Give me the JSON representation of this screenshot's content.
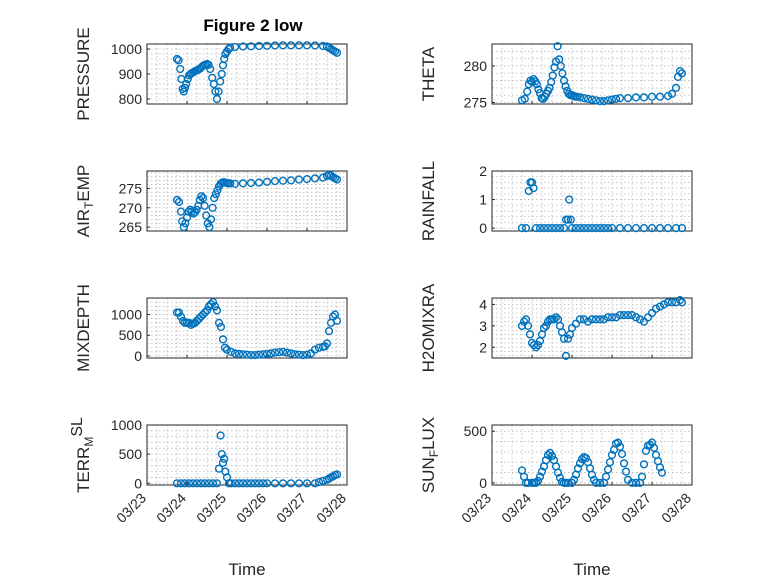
{
  "figure": {
    "title": "Figure 2 low",
    "marker_color": "#0072BD",
    "x_ticks": [
      "03/23",
      "03/24",
      "03/25",
      "03/26",
      "03/27",
      "03/28"
    ],
    "x_label": "Time"
  },
  "chart_data": [
    {
      "type": "scatter",
      "ylabel": "PRESSURE",
      "ylim": [
        780,
        1020
      ],
      "yticks": [
        800,
        900,
        1000
      ],
      "grid": true,
      "x": [
        23.75,
        23.79,
        23.83,
        23.86,
        23.89,
        23.92,
        23.95,
        23.98,
        24.02,
        24.05,
        24.09,
        24.13,
        24.17,
        24.21,
        24.25,
        24.29,
        24.33,
        24.38,
        24.42,
        24.46,
        24.5,
        24.54,
        24.58,
        24.63,
        24.67,
        24.71,
        24.75,
        24.79,
        24.83,
        24.87,
        24.9,
        24.93,
        24.96,
        25.0,
        25.04,
        25.08,
        25.2,
        25.4,
        25.6,
        25.8,
        26.0,
        26.2,
        26.4,
        26.6,
        26.8,
        27.0,
        27.2,
        27.4,
        27.5,
        27.55,
        27.6,
        27.65,
        27.7,
        27.75
      ],
      "y": [
        960,
        955,
        920,
        880,
        840,
        830,
        845,
        860,
        880,
        895,
        900,
        905,
        908,
        912,
        915,
        918,
        922,
        930,
        935,
        937,
        940,
        937,
        920,
        885,
        860,
        830,
        800,
        830,
        870,
        900,
        935,
        960,
        980,
        990,
        1000,
        1005,
        1008,
        1010,
        1011,
        1012,
        1013,
        1014,
        1015,
        1015,
        1015,
        1015,
        1014,
        1012,
        1010,
        1005,
        1000,
        995,
        990,
        985
      ]
    },
    {
      "type": "scatter",
      "ylabel": "THETA",
      "ylim": [
        274.8,
        283.0
      ],
      "yticks": [
        275,
        280
      ],
      "grid": true,
      "x": [
        23.75,
        23.82,
        23.88,
        23.92,
        23.96,
        24.0,
        24.04,
        24.08,
        24.12,
        24.16,
        24.2,
        24.24,
        24.28,
        24.32,
        24.36,
        24.4,
        24.44,
        24.48,
        24.52,
        24.56,
        24.6,
        24.64,
        24.68,
        24.72,
        24.76,
        24.8,
        24.84,
        24.88,
        24.92,
        24.96,
        25.0,
        25.04,
        25.08,
        25.12,
        25.2,
        25.3,
        25.4,
        25.5,
        25.6,
        25.7,
        25.8,
        25.9,
        26.0,
        26.1,
        26.2,
        26.4,
        26.6,
        26.8,
        27.0,
        27.2,
        27.4,
        27.5,
        27.6,
        27.65,
        27.7,
        27.75
      ],
      "y": [
        275.3,
        275.5,
        276.5,
        277.5,
        278.0,
        277.8,
        278.2,
        277.9,
        277.5,
        276.8,
        276.3,
        275.6,
        275.5,
        275.8,
        276.2,
        276.6,
        277.0,
        277.8,
        278.7,
        279.8,
        280.6,
        282.7,
        280.9,
        280.0,
        279.0,
        278.0,
        277.2,
        276.6,
        276.2,
        276.0,
        276.0,
        275.9,
        275.8,
        275.8,
        275.7,
        275.6,
        275.5,
        275.4,
        275.3,
        275.2,
        275.2,
        275.3,
        275.4,
        275.5,
        275.6,
        275.6,
        275.7,
        275.7,
        275.8,
        275.8,
        275.9,
        276.2,
        277.0,
        278.5,
        279.3,
        279.0
      ]
    },
    {
      "type": "scatter",
      "ylabel": "AIR_TEMP",
      "ylim": [
        264.0,
        279.5
      ],
      "yticks": [
        265,
        270,
        275
      ],
      "grid": true,
      "x": [
        23.75,
        23.8,
        23.85,
        23.88,
        23.92,
        23.96,
        24.0,
        24.04,
        24.08,
        24.12,
        24.16,
        24.2,
        24.24,
        24.28,
        24.32,
        24.36,
        24.4,
        24.44,
        24.48,
        24.52,
        24.56,
        24.6,
        24.64,
        24.68,
        24.72,
        24.76,
        24.8,
        24.84,
        24.88,
        24.92,
        24.96,
        25.0,
        25.04,
        25.08,
        25.2,
        25.4,
        25.6,
        25.8,
        26.0,
        26.2,
        26.4,
        26.6,
        26.8,
        27.0,
        27.2,
        27.4,
        27.5,
        27.55,
        27.6,
        27.65,
        27.7,
        27.75
      ],
      "y": [
        272.0,
        271.5,
        269.0,
        266.5,
        265.0,
        266.0,
        267.5,
        269.0,
        269.5,
        269.0,
        268.5,
        268.8,
        269.5,
        270.5,
        272.0,
        273.0,
        272.5,
        270.5,
        268.0,
        266.0,
        265.0,
        267.0,
        270.0,
        272.5,
        273.5,
        274.5,
        275.5,
        276.2,
        276.5,
        276.6,
        276.5,
        276.4,
        276.3,
        276.3,
        276.2,
        276.3,
        276.4,
        276.5,
        276.7,
        276.9,
        277.0,
        277.1,
        277.3,
        277.4,
        277.6,
        277.8,
        278.2,
        278.5,
        278.3,
        277.9,
        277.6,
        277.3
      ]
    },
    {
      "type": "scatter",
      "ylabel": "RAINFALL",
      "ylim": [
        -0.1,
        2.0
      ],
      "yticks": [
        0,
        1,
        2
      ],
      "grid": true,
      "x": [
        23.75,
        23.85,
        23.92,
        23.96,
        24.0,
        24.04,
        24.1,
        24.2,
        24.3,
        24.4,
        24.5,
        24.6,
        24.7,
        24.8,
        24.85,
        24.9,
        24.93,
        24.97,
        25.0,
        25.1,
        25.2,
        25.3,
        25.4,
        25.5,
        25.6,
        25.7,
        25.8,
        25.9,
        26.0,
        26.2,
        26.4,
        26.6,
        26.8,
        27.0,
        27.2,
        27.4,
        27.6,
        27.75
      ],
      "y": [
        0,
        0,
        1.3,
        1.6,
        1.6,
        1.4,
        0,
        0,
        0,
        0,
        0,
        0,
        0,
        0,
        0.3,
        0.3,
        1.0,
        0.3,
        0,
        0,
        0,
        0,
        0,
        0,
        0,
        0,
        0,
        0,
        0,
        0,
        0,
        0,
        0,
        0,
        0,
        0,
        0,
        0
      ]
    },
    {
      "type": "scatter",
      "ylabel": "MIXDEPTH",
      "ylim": [
        -50,
        1400
      ],
      "yticks": [
        0,
        500,
        1000
      ],
      "grid": true,
      "x": [
        23.75,
        23.8,
        23.85,
        23.9,
        23.95,
        24.0,
        24.05,
        24.1,
        24.15,
        24.2,
        24.25,
        24.3,
        24.35,
        24.4,
        24.45,
        24.5,
        24.55,
        24.6,
        24.65,
        24.7,
        24.75,
        24.8,
        24.85,
        24.9,
        24.95,
        25.0,
        25.1,
        25.2,
        25.3,
        25.4,
        25.5,
        25.6,
        25.7,
        25.8,
        25.9,
        26.0,
        26.1,
        26.2,
        26.3,
        26.4,
        26.5,
        26.6,
        26.7,
        26.8,
        26.9,
        27.0,
        27.1,
        27.2,
        27.3,
        27.4,
        27.45,
        27.5,
        27.55,
        27.6,
        27.65,
        27.7,
        27.75
      ],
      "y": [
        1050,
        1050,
        950,
        850,
        800,
        800,
        800,
        750,
        780,
        800,
        850,
        900,
        950,
        1000,
        1050,
        1100,
        1200,
        1250,
        1300,
        1200,
        1100,
        800,
        700,
        400,
        200,
        150,
        100,
        60,
        50,
        40,
        30,
        20,
        20,
        30,
        40,
        50,
        60,
        80,
        90,
        100,
        80,
        60,
        40,
        30,
        20,
        30,
        60,
        150,
        200,
        220,
        230,
        300,
        600,
        800,
        950,
        1000,
        850
      ]
    },
    {
      "type": "scatter",
      "ylabel": "H2OMIXRA",
      "ylim": [
        1.5,
        4.3
      ],
      "yticks": [
        2,
        3,
        4
      ],
      "grid": true,
      "x": [
        23.75,
        23.8,
        23.85,
        23.9,
        23.95,
        24.0,
        24.05,
        24.1,
        24.15,
        24.2,
        24.25,
        24.3,
        24.35,
        24.4,
        24.45,
        24.5,
        24.55,
        24.6,
        24.65,
        24.7,
        24.75,
        24.8,
        24.85,
        24.9,
        24.95,
        25.0,
        25.1,
        25.2,
        25.3,
        25.4,
        25.5,
        25.6,
        25.7,
        25.8,
        25.9,
        26.0,
        26.1,
        26.2,
        26.3,
        26.4,
        26.5,
        26.6,
        26.7,
        26.8,
        26.9,
        27.0,
        27.1,
        27.2,
        27.3,
        27.4,
        27.5,
        27.6,
        27.7,
        27.75
      ],
      "y": [
        3.0,
        3.2,
        3.3,
        3.0,
        2.6,
        2.2,
        2.1,
        2.0,
        2.1,
        2.3,
        2.6,
        2.9,
        3.0,
        3.2,
        3.3,
        3.3,
        3.3,
        3.4,
        3.3,
        3.0,
        2.7,
        2.4,
        1.6,
        2.4,
        2.6,
        2.9,
        3.1,
        3.3,
        3.3,
        3.2,
        3.3,
        3.3,
        3.3,
        3.3,
        3.4,
        3.4,
        3.4,
        3.5,
        3.5,
        3.5,
        3.5,
        3.4,
        3.3,
        3.2,
        3.4,
        3.6,
        3.8,
        3.9,
        4.0,
        4.1,
        4.1,
        4.1,
        4.2,
        4.1
      ]
    },
    {
      "type": "scatter",
      "ylabel": "TERR_MSL",
      "ylim": [
        -30,
        1000
      ],
      "yticks": [
        0,
        500,
        1000
      ],
      "grid": true,
      "x": [
        23.75,
        23.85,
        23.95,
        24.05,
        24.15,
        24.25,
        24.35,
        24.45,
        24.55,
        24.65,
        24.75,
        24.8,
        24.84,
        24.87,
        24.9,
        24.93,
        24.96,
        25.0,
        25.05,
        25.1,
        25.2,
        25.3,
        25.4,
        25.5,
        25.6,
        25.7,
        25.8,
        25.9,
        26.0,
        26.2,
        26.4,
        26.6,
        26.8,
        27.0,
        27.2,
        27.3,
        27.4,
        27.5,
        27.55,
        27.6,
        27.65,
        27.7,
        27.75
      ],
      "y": [
        0,
        0,
        0,
        0,
        0,
        0,
        0,
        0,
        0,
        0,
        0,
        250,
        820,
        500,
        350,
        420,
        200,
        100,
        0,
        0,
        0,
        0,
        0,
        0,
        0,
        0,
        0,
        0,
        0,
        0,
        0,
        0,
        0,
        0,
        0,
        20,
        40,
        60,
        80,
        100,
        120,
        140,
        150
      ]
    },
    {
      "type": "scatter",
      "ylabel": "SUN_FLUX",
      "ylim": [
        -20,
        560
      ],
      "yticks": [
        0,
        500
      ],
      "grid": true,
      "x": [
        23.75,
        23.8,
        23.85,
        23.9,
        24.0,
        24.05,
        24.1,
        24.15,
        24.2,
        24.25,
        24.3,
        24.35,
        24.4,
        24.45,
        24.5,
        24.55,
        24.6,
        24.65,
        24.7,
        24.75,
        24.8,
        24.85,
        24.9,
        25.0,
        25.05,
        25.1,
        25.15,
        25.2,
        25.25,
        25.3,
        25.35,
        25.4,
        25.45,
        25.5,
        25.55,
        25.6,
        25.7,
        25.8,
        25.85,
        25.9,
        25.95,
        26.0,
        26.05,
        26.1,
        26.15,
        26.2,
        26.25,
        26.3,
        26.35,
        26.4,
        26.5,
        26.6,
        26.7,
        26.75,
        26.8,
        26.85,
        26.9,
        26.95,
        27.0,
        27.05,
        27.1,
        27.15,
        27.2,
        27.25
      ],
      "y": [
        120,
        60,
        0,
        0,
        0,
        0,
        0,
        20,
        60,
        110,
        160,
        220,
        270,
        290,
        260,
        220,
        160,
        100,
        50,
        10,
        0,
        0,
        0,
        0,
        30,
        80,
        140,
        190,
        230,
        250,
        240,
        200,
        140,
        80,
        30,
        0,
        0,
        0,
        60,
        130,
        200,
        270,
        320,
        380,
        390,
        350,
        280,
        190,
        110,
        30,
        0,
        0,
        0,
        60,
        180,
        310,
        360,
        370,
        390,
        340,
        270,
        210,
        150,
        100
      ]
    }
  ]
}
